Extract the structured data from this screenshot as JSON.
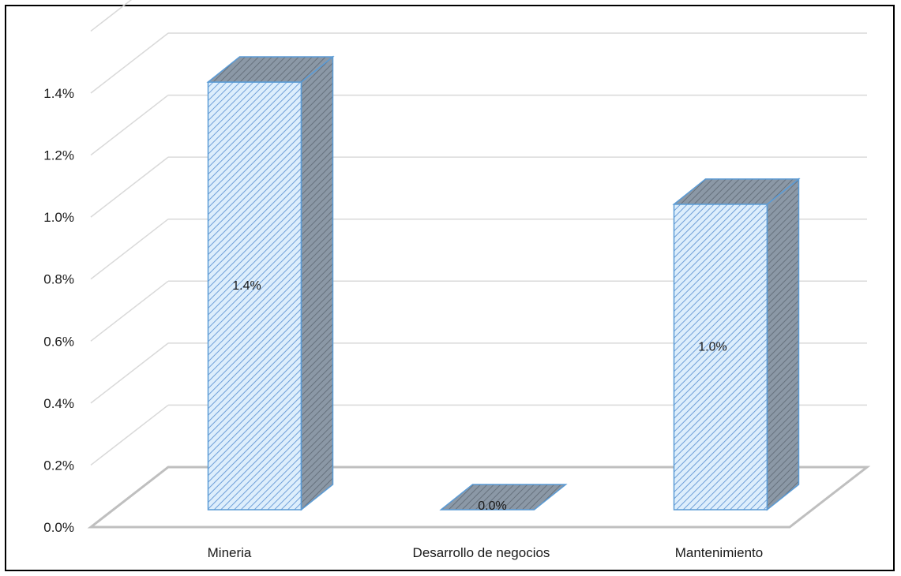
{
  "chart_data": {
    "type": "bar",
    "style": "3d-column",
    "categories": [
      "Mineria",
      "Desarrollo de negocios",
      "Mantenimiento"
    ],
    "values": [
      1.4,
      0.0,
      1.0
    ],
    "data_labels": [
      "1.4%",
      "0.0%",
      "1.0%"
    ],
    "y_ticks": [
      "0.0%",
      "0.2%",
      "0.4%",
      "0.6%",
      "0.8%",
      "1.0%",
      "1.2%",
      "1.4%"
    ],
    "ylim": [
      0,
      1.4
    ],
    "unit": "%",
    "grid": true,
    "legend": "none",
    "colors": {
      "front": "#ddeefc",
      "hatch": "#6f9fd8",
      "edge": "#5b9bd5",
      "side": "#7d8a98",
      "top": "#8e99a6",
      "grid": "#d9d9d9",
      "floor": "#bfbfbf"
    }
  }
}
